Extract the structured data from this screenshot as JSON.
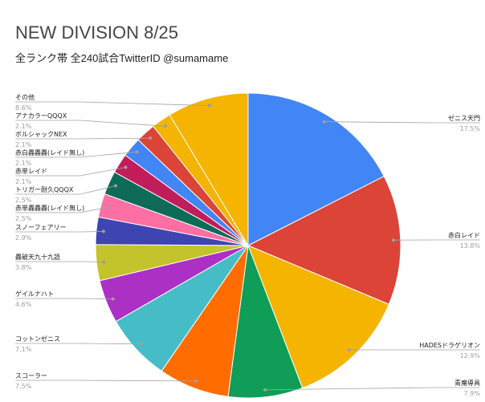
{
  "chart_data": {
    "type": "pie",
    "title": "NEW DIVISION 8/25",
    "subtitle": "全ランク帯 全240試合TwitterID @sumamame",
    "categories": [
      "ゼニス天門",
      "赤白レイド",
      "HADESドラゲリオン",
      "青魔導具",
      "スコーラー",
      "コットンゼニス",
      "ゲイルナハト",
      "轟破天九十九語",
      "スノーフェアリー",
      "赤単轟轟轟(レイド無し)",
      "トリガー耐久QQQX",
      "赤単レイド",
      "赤白轟轟轟(レイド無し)",
      "ボルシャックNEX",
      "アナカラーQQQX",
      "その他"
    ],
    "values": [
      17.5,
      13.8,
      12.9,
      7.9,
      7.5,
      7.1,
      4.6,
      3.8,
      2.9,
      2.5,
      2.5,
      2.1,
      2.1,
      2.1,
      2.1,
      8.6
    ],
    "unit": "%",
    "colors": [
      "#4285f4",
      "#db4437",
      "#f4b400",
      "#0f9d58",
      "#ff6d01",
      "#46bdc6",
      "#ab30c4",
      "#c3c32b",
      "#3e45b0",
      "#fd6ea3",
      "#0d6b57",
      "#c21d5b",
      "#4285f4",
      "#db4437",
      "#f4b400",
      "#f4b400"
    ]
  }
}
